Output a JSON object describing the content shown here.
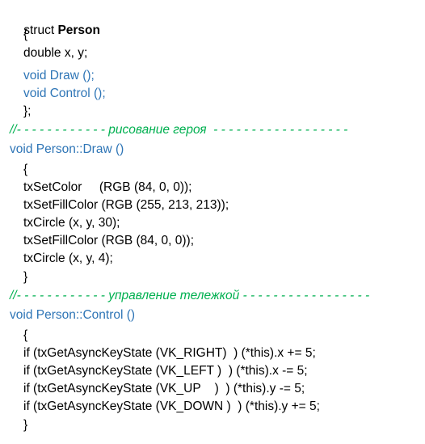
{
  "lines": [
    {
      "text": "struct ",
      "bold_text": "Person"
    },
    {
      "text": "{"
    },
    {
      "text": "double x, y;"
    },
    {
      "text": "void Draw ();"
    },
    {
      "text": "void Control ();"
    },
    {
      "text": "};"
    },
    {
      "text": "//- - - - - - - - - - - - рисование героя  - - - - - - - - - - - - - - - - - -"
    },
    {
      "text": "void Person::Draw ()"
    },
    {
      "text": "{"
    },
    {
      "text": "txSetColor     (RGB (84, 0, 0));"
    },
    {
      "text": "txSetFillColor (RGB (255, 213, 213));"
    },
    {
      "text": "txCircle (x, y, 30);"
    },
    {
      "text": "txSetFillColor (RGB (84, 0, 0));"
    },
    {
      "text": "txCircle (x, y, 4);"
    },
    {
      "text": "}"
    },
    {
      "text": "//- - - - - - - - - - - - управление тележкой - - - - - - - - - - - - - - - - -"
    },
    {
      "text": "void Person::Control ()"
    },
    {
      "text": "{"
    },
    {
      "text": "if (txGetAsyncKeyState (VK_RIGHT)  ) (*this).x += 5;"
    },
    {
      "text": "if (txGetAsyncKeyState (VK_LEFT )  ) (*this).x -= 5;"
    },
    {
      "text": "if (txGetAsyncKeyState (VK_UP    )  ) (*this).y -= 5;"
    },
    {
      "text": "if (txGetAsyncKeyState (VK_DOWN )  ) (*this).y += 5;"
    },
    {
      "text": "}"
    }
  ],
  "colors": {
    "text": "#000000",
    "keyword_blue": "#2e75b6",
    "comment_green": "#00b050",
    "background": "#ffffff"
  }
}
